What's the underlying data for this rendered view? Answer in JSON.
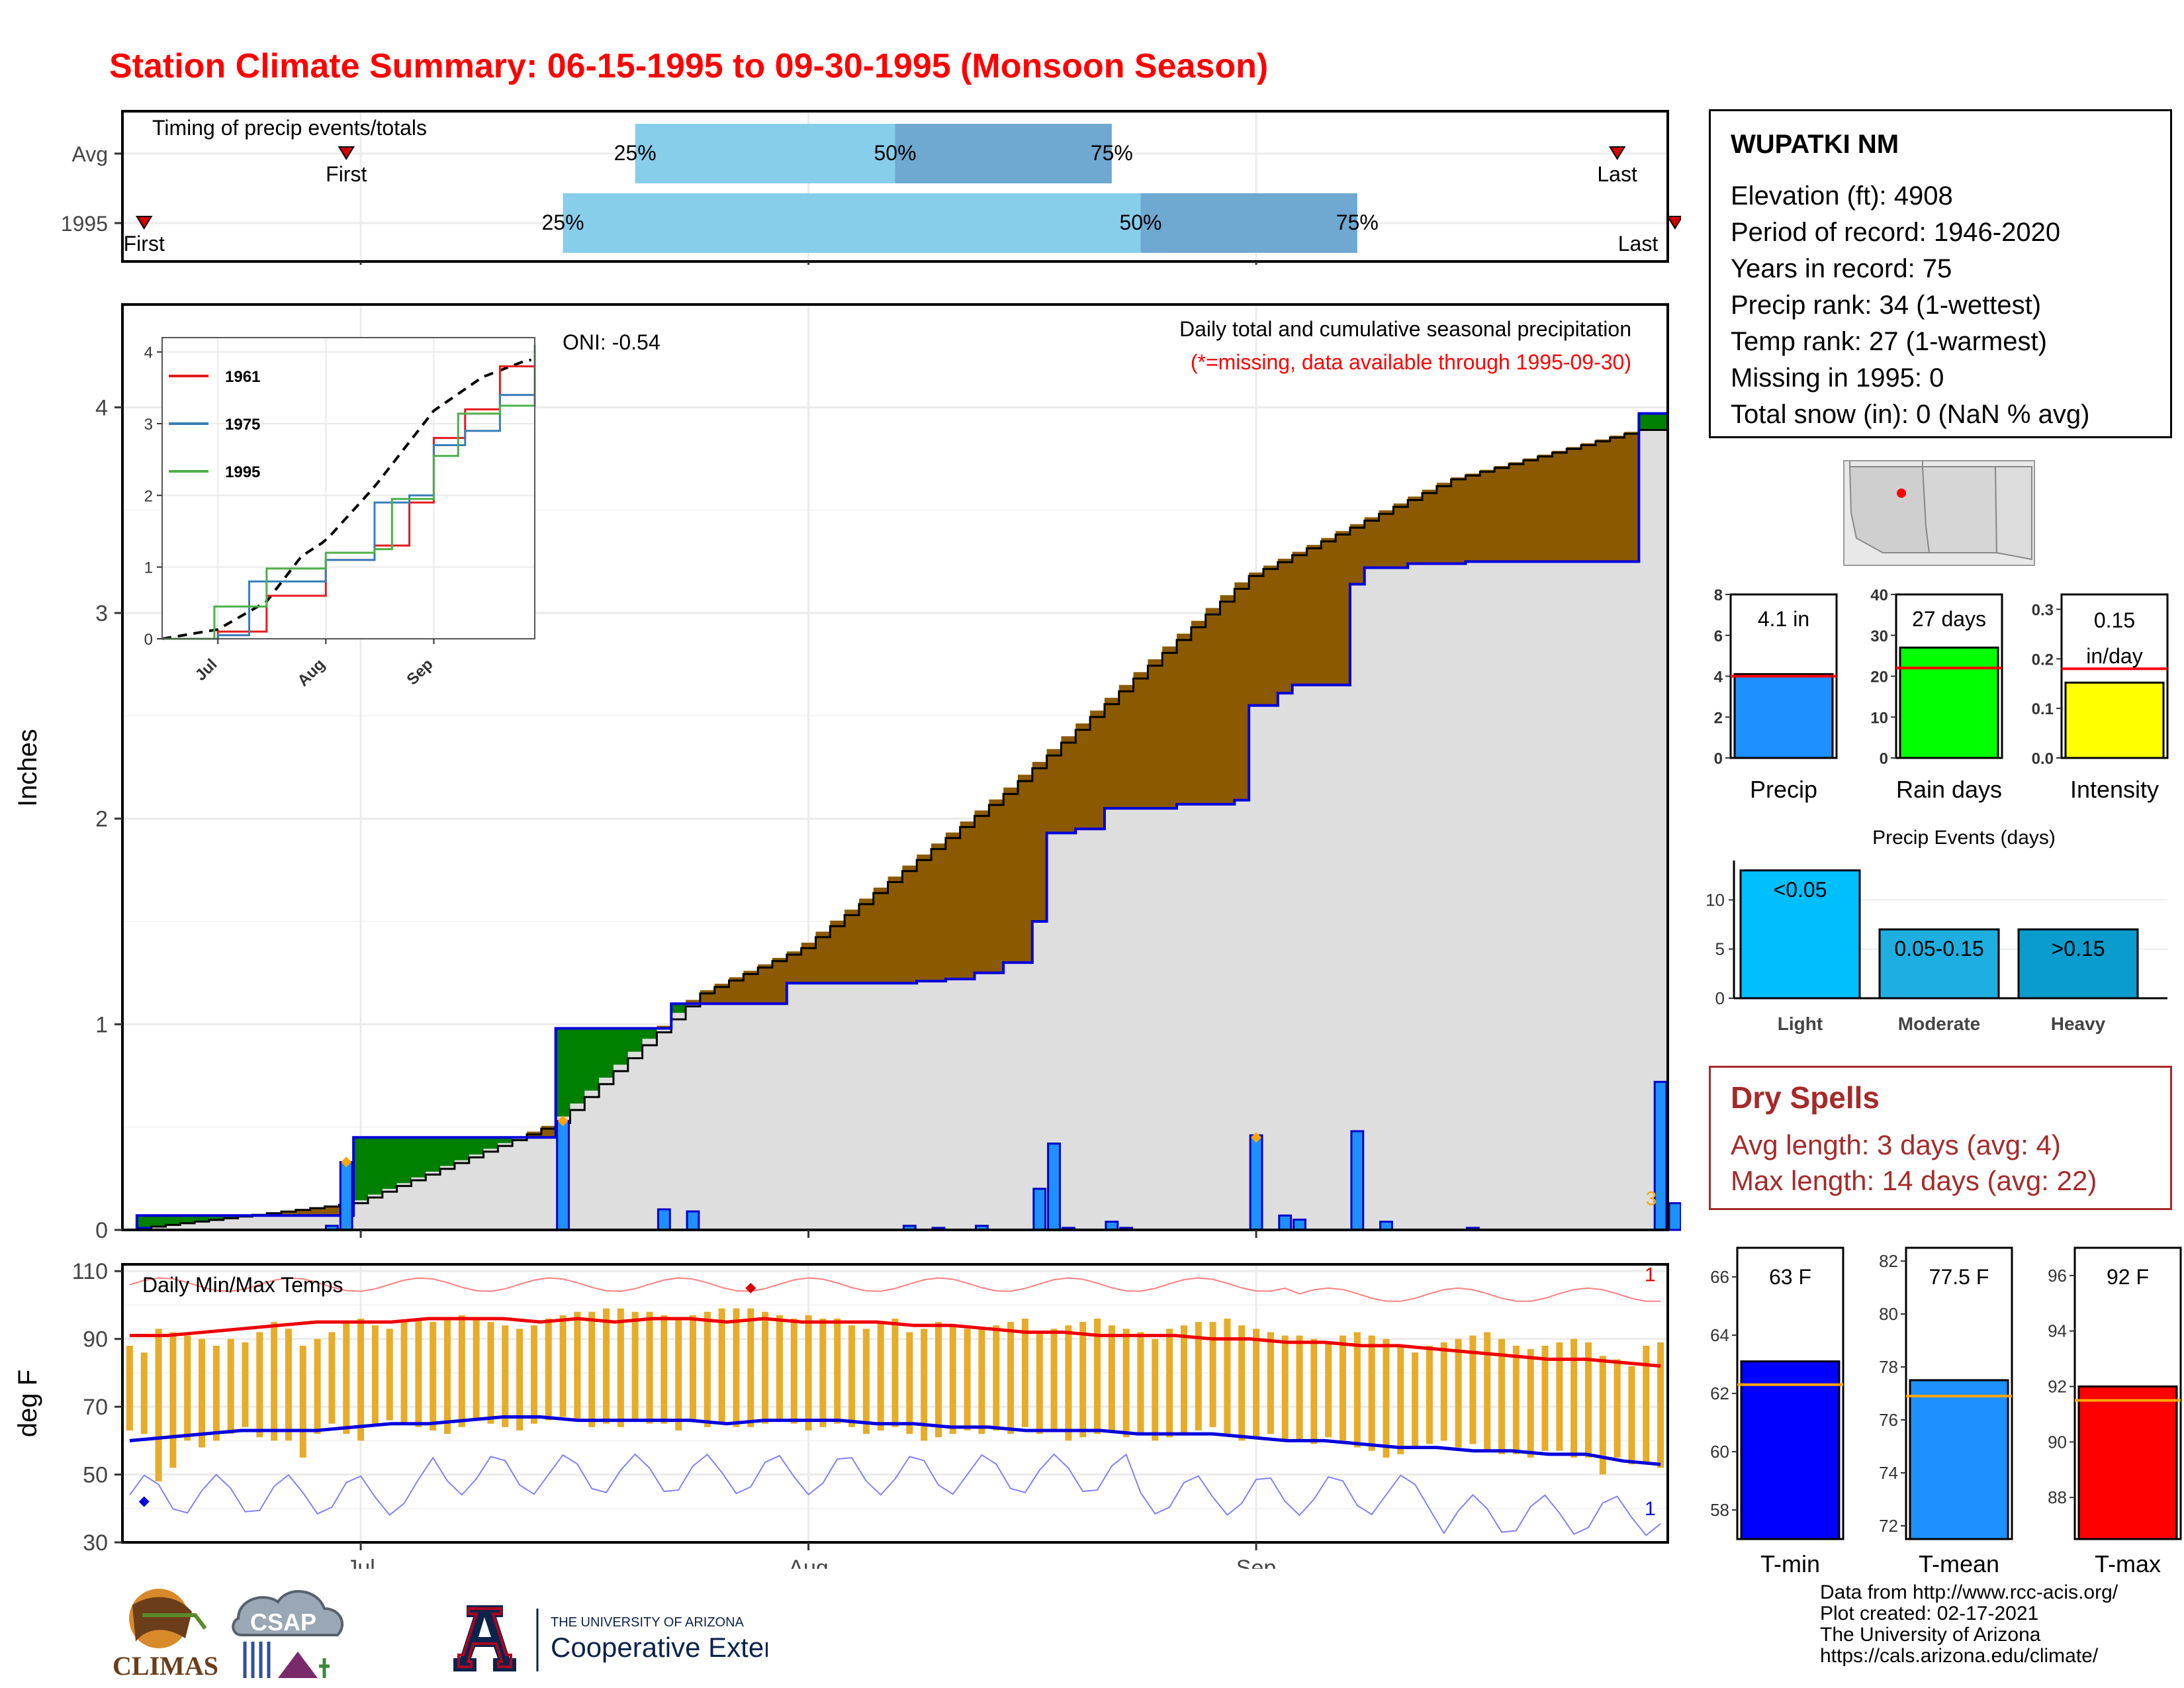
{
  "title": "Station Climate Summary: 06-15-1995 to 09-30-1995 (Monsoon Season)",
  "timing": {
    "label": "Timing of precip events/totals",
    "rows": [
      {
        "name": "Avg",
        "first_label": "First",
        "last_label": "Last",
        "first_date": "1995-06-30",
        "last_date": "1995-09-26",
        "p25": "1995-07-20",
        "p50": "1995-08-07",
        "p75": "1995-08-22",
        "p25_label": "25%",
        "p50_label": "50%",
        "p75_label": "75%"
      },
      {
        "name": "1995",
        "first_label": "First",
        "last_label": "Last",
        "first_date": "1995-06-16",
        "last_date": "1995-09-30",
        "p25": "1995-07-15",
        "p50": "1995-08-24",
        "p75": "1995-09-08",
        "p25_label": "25%",
        "p50_label": "50%",
        "p75_label": "75%"
      }
    ],
    "colors": {
      "q1": "#87ceeb",
      "q2": "#6fa8d0",
      "marker": "#d40000"
    }
  },
  "precip": {
    "ylabel": "Inches",
    "title_line1": "Daily total and cumulative seasonal precipitation",
    "title_line2": "(*=missing, data available through 1995-09-30)",
    "oni": "ONI: -0.54",
    "yticks": [
      "0",
      "1",
      "2",
      "3",
      "4"
    ],
    "corner_label": "3"
  },
  "inset": {
    "legend": [
      "1961",
      "1975",
      "1995"
    ],
    "yticks": [
      "0",
      "1",
      "2",
      "3",
      "4"
    ],
    "xticks": [
      "Jul",
      "Aug",
      "Sep"
    ]
  },
  "temps": {
    "label": "Daily Min/Max Temps",
    "ylabel": "deg F",
    "yticks": [
      "30",
      "50",
      "70",
      "90",
      "110"
    ],
    "xticks": [
      "Jul",
      "Aug",
      "Sep"
    ],
    "right_max_label": "1",
    "right_min_label": "1"
  },
  "station": {
    "name": "WUPATKI NM",
    "lines": [
      "Elevation (ft): 4908",
      "Period of record: 1946-2020",
      "Years in record: 75",
      "Precip rank: 34 (1-wettest)",
      "Temp rank: 27 (1-warmest)",
      "Missing in 1995: 0",
      "Total snow (in): 0 (NaN % avg)"
    ]
  },
  "summary_bars": [
    {
      "label": "Precip",
      "value_label": "4.1 in",
      "value": 4.1,
      "avg": 4.0,
      "yticks": [
        "0",
        "2",
        "4",
        "6",
        "8"
      ],
      "ymax": 8,
      "color": "#1e90ff"
    },
    {
      "label": "Rain days",
      "value_label": "27 days",
      "value": 27,
      "avg": 22,
      "yticks": [
        "0",
        "10",
        "20",
        "30",
        "40"
      ],
      "ymax": 40,
      "color": "#00ff00"
    },
    {
      "label": "Intensity",
      "value_label": "0.15 in/day",
      "value": 0.152,
      "avg": 0.18,
      "yticks": [
        "0.0",
        "0.1",
        "0.2",
        "0.3"
      ],
      "ymax": 0.33,
      "color": "#ffff00"
    }
  ],
  "precip_events": {
    "title": "Precip Events (days)",
    "yticks": [
      "0",
      "5",
      "10"
    ],
    "categories": [
      "Light",
      "Moderate",
      "Heavy"
    ],
    "bar_labels": [
      "<0.05",
      "0.05-0.15",
      ">0.15"
    ],
    "values": [
      13,
      7,
      7
    ],
    "colors": [
      "#00bfff",
      "#1eaee0",
      "#0a9ccc"
    ]
  },
  "dry_spells": {
    "title": "Dry Spells",
    "avg_line": "Avg length: 3 days (avg: 4)",
    "max_line": "Max length: 14 days (avg: 22)"
  },
  "temp_bars": [
    {
      "label": "T-min",
      "value_label": "63 F",
      "value": 63.1,
      "avg": 62.3,
      "yticks": [
        "58",
        "60",
        "62",
        "64",
        "66"
      ],
      "ymin": 57,
      "ymax": 67,
      "color": "#0000ff"
    },
    {
      "label": "T-mean",
      "value_label": "77.5 F",
      "value": 77.5,
      "avg": 76.9,
      "yticks": [
        "72",
        "74",
        "76",
        "78",
        "80",
        "82"
      ],
      "ymin": 71.5,
      "ymax": 82.5,
      "color": "#1e90ff"
    },
    {
      "label": "T-max",
      "value_label": "92 F",
      "value": 92.0,
      "avg": 91.5,
      "yticks": [
        "88",
        "90",
        "92",
        "94",
        "96"
      ],
      "ymin": 86.5,
      "ymax": 97,
      "color": "#ff0000"
    }
  ],
  "chart_data": [
    {
      "type": "area",
      "title": "Daily total and cumulative seasonal precipitation",
      "ylabel": "Inches",
      "xlim": [
        "1995-06-15",
        "1995-09-30"
      ],
      "ylim": [
        0,
        4.5
      ],
      "series": [
        {
          "name": "1995 cumulative",
          "x": [
            "06-15",
            "06-16",
            "06-30",
            "07-01",
            "07-14",
            "07-15",
            "07-21",
            "07-23",
            "07-31",
            "08-03",
            "08-07",
            "08-09",
            "08-11",
            "08-13",
            "08-15",
            "08-17",
            "08-18",
            "08-20",
            "08-22",
            "08-27",
            "08-31",
            "09-01",
            "09-03",
            "09-04",
            "09-08",
            "09-09",
            "09-10",
            "09-12",
            "09-16",
            "09-26",
            "09-28",
            "09-30"
          ],
          "values": [
            0,
            0.07,
            0.07,
            0.45,
            0.45,
            0.98,
            0.98,
            1.1,
            1.2,
            1.2,
            1.2,
            1.21,
            1.22,
            1.25,
            1.3,
            1.5,
            1.93,
            1.95,
            2.05,
            2.07,
            2.09,
            2.55,
            2.61,
            2.65,
            3.14,
            3.22,
            3.22,
            3.24,
            3.25,
            3.25,
            3.97,
            4.1
          ]
        },
        {
          "name": "Average cumulative",
          "x": [
            "06-15",
            "07-01",
            "07-15",
            "07-25",
            "08-01",
            "08-15",
            "09-01",
            "09-15",
            "09-28"
          ],
          "values": [
            0,
            0.13,
            0.52,
            1.15,
            1.37,
            2.12,
            3.18,
            3.65,
            3.89
          ]
        }
      ],
      "daily_bars": {
        "x": [
          "06-16",
          "06-29",
          "06-30",
          "07-15",
          "07-22",
          "07-24",
          "08-08",
          "08-10",
          "08-13",
          "08-17",
          "08-18",
          "08-19",
          "08-22",
          "08-23",
          "09-01",
          "09-03",
          "09-04",
          "09-08",
          "09-10",
          "09-16",
          "09-29",
          "09-30"
        ],
        "values": [
          0.01,
          0.02,
          0.33,
          0.53,
          0.1,
          0.09,
          0.02,
          0.01,
          0.02,
          0.2,
          0.42,
          0.01,
          0.04,
          0.01,
          0.46,
          0.07,
          0.05,
          0.48,
          0.04,
          0.01,
          0.72,
          0.13
        ]
      }
    },
    {
      "type": "line",
      "title": "",
      "legend": [
        "1961",
        "1975",
        "1995"
      ],
      "ylim": [
        0,
        4.2
      ],
      "series": [
        {
          "name": "1961",
          "x": [
            "06-15",
            "07-01",
            "07-15",
            "08-01",
            "08-15",
            "08-25",
            "09-01",
            "09-10",
            "09-20",
            "09-30"
          ],
          "values": [
            0,
            0.1,
            0.6,
            1.1,
            1.3,
            1.9,
            2.8,
            3.2,
            3.8,
            3.97
          ]
        },
        {
          "name": "1975",
          "x": [
            "06-15",
            "07-01",
            "07-10",
            "08-01",
            "08-15",
            "08-25",
            "09-01",
            "09-10",
            "09-20",
            "09-30"
          ],
          "values": [
            0,
            0.05,
            0.8,
            1.1,
            1.9,
            2.0,
            2.7,
            2.9,
            3.4,
            3.57
          ]
        },
        {
          "name": "1995",
          "x": [
            "06-15",
            "06-30",
            "07-15",
            "08-01",
            "08-15",
            "08-20",
            "09-01",
            "09-08",
            "09-20",
            "09-30"
          ],
          "values": [
            0,
            0.45,
            0.98,
            1.2,
            1.25,
            1.95,
            2.55,
            3.14,
            3.25,
            4.1
          ]
        }
      ]
    },
    {
      "type": "bar",
      "title": "Daily Min/Max Temps",
      "ylabel": "deg F",
      "ylim": [
        30,
        112
      ],
      "x_start": "06-15",
      "tmax": [
        88,
        86,
        93,
        92,
        91,
        90,
        88,
        90,
        89,
        92,
        95,
        93,
        88,
        90,
        92,
        95,
        96,
        94,
        93,
        95,
        96,
        95,
        96,
        97,
        96,
        95,
        94,
        93,
        94,
        96,
        97,
        98,
        98,
        99,
        99,
        98,
        98,
        97,
        96,
        97,
        98,
        99,
        99,
        99,
        98,
        97,
        96,
        97,
        96,
        96,
        94,
        93,
        95,
        96,
        92,
        93,
        95,
        94,
        93,
        93,
        94,
        95,
        96,
        92,
        93,
        94,
        95,
        96,
        94,
        93,
        92,
        90,
        93,
        94,
        95,
        95,
        96,
        94,
        93,
        92,
        91,
        91,
        90,
        89,
        91,
        92,
        91,
        90,
        88,
        86,
        88,
        89,
        90,
        91,
        92,
        90,
        88,
        87,
        88,
        89,
        90,
        89,
        85,
        84,
        82,
        88,
        89
      ],
      "tmin": [
        63,
        62,
        48,
        52,
        60,
        58,
        60,
        62,
        64,
        61,
        60,
        60,
        55,
        62,
        65,
        62,
        60,
        65,
        66,
        65,
        64,
        63,
        62,
        64,
        66,
        65,
        64,
        63,
        65,
        66,
        67,
        66,
        64,
        65,
        64,
        66,
        65,
        65,
        63,
        66,
        64,
        65,
        64,
        64,
        65,
        66,
        65,
        63,
        64,
        65,
        64,
        62,
        63,
        64,
        62,
        60,
        61,
        62,
        63,
        62,
        63,
        62,
        64,
        62,
        63,
        60,
        61,
        62,
        63,
        61,
        62,
        60,
        61,
        62,
        63,
        64,
        62,
        60,
        61,
        62,
        60,
        60,
        59,
        61,
        60,
        58,
        57,
        55,
        56,
        58,
        59,
        60,
        58,
        59,
        57,
        56,
        56,
        55,
        57,
        57,
        55,
        55,
        50,
        55,
        53,
        53,
        52
      ],
      "avg_max_line": [
        91,
        91,
        92,
        93,
        94,
        95,
        95,
        95,
        96,
        96,
        96,
        95,
        96,
        95,
        96,
        96,
        95,
        96,
        95,
        95,
        95,
        94,
        94,
        93,
        92,
        92,
        91,
        91,
        91,
        90,
        90,
        89,
        89,
        88,
        88,
        87,
        86,
        85,
        84,
        84,
        83,
        82
      ],
      "avg_min_line": [
        60,
        61,
        62,
        63,
        63,
        63,
        64,
        65,
        65,
        66,
        67,
        67,
        66,
        66,
        66,
        66,
        65,
        66,
        66,
        66,
        65,
        65,
        64,
        64,
        63,
        63,
        63,
        62,
        62,
        62,
        61,
        60,
        60,
        59,
        58,
        58,
        57,
        57,
        56,
        56,
        54,
        53
      ],
      "record_max_marker": {
        "x": "07-28",
        "value": 105
      },
      "record_min_marker": {
        "x": "06-16",
        "value": 42
      }
    },
    {
      "type": "bar",
      "title": "Precip Events (days)",
      "categories": [
        "Light",
        "Moderate",
        "Heavy"
      ],
      "values": [
        13,
        7,
        7
      ]
    }
  ],
  "credits": [
    "Data from http://www.rcc-acis.org/",
    "Plot created: 02-17-2021",
    "The University of Arizona",
    "https://cals.arizona.edu/climate/"
  ],
  "logos": {
    "climas": "CLIMAS",
    "csap": "CSAP",
    "ua_line1": "THE UNIVERSITY OF ARIZONA",
    "ua_line2": "Cooperative Extension"
  }
}
